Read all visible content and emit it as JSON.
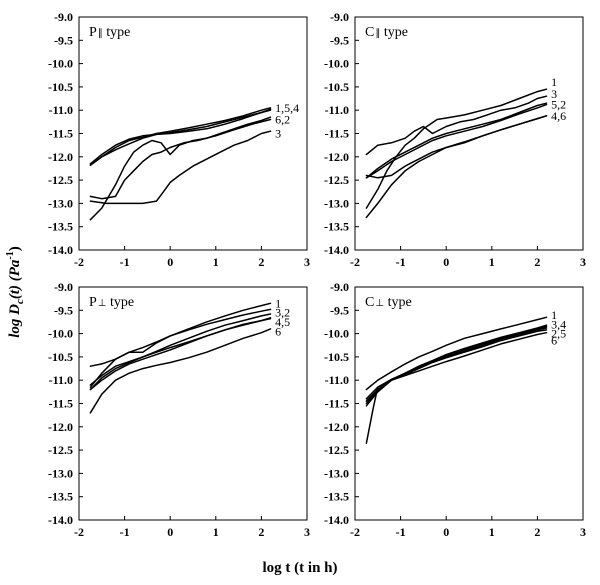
{
  "figure": {
    "ylabel": "log D",
    "ylabel_sub": "c",
    "ylabel_tail": "(t) (Pa",
    "ylabel_sup": "-1",
    "ylabel_end": ")",
    "xlabel": "log t (t in h)"
  },
  "chart_data": [
    {
      "type": "line",
      "title": "P",
      "title_symbol": "∥",
      "title_suffix": " type",
      "xlim": [
        -2,
        3
      ],
      "ylim": [
        -14.0,
        -9.0
      ],
      "xticks": [
        "-2",
        "-1",
        "0",
        "1",
        "2",
        "3"
      ],
      "yticks": [
        "-9.0",
        "-9.5",
        "-10.0",
        "-10.5",
        "-11.0",
        "-11.5",
        "-12.0",
        "-12.5",
        "-13.0",
        "-13.5",
        "-14.0"
      ],
      "curve_labels": [
        {
          "text": "1,5,4",
          "y": -10.95
        },
        {
          "text": "6,2",
          "y": -11.2
        },
        {
          "text": "3",
          "y": -11.5
        }
      ],
      "series": [
        {
          "x": [
            -1.75,
            -1.5,
            -1.2,
            -0.9,
            -0.6,
            -0.3,
            0.0,
            0.4,
            0.8,
            1.2,
            1.6,
            2.0,
            2.2
          ],
          "y": [
            -12.18,
            -12.0,
            -11.8,
            -11.65,
            -11.58,
            -11.5,
            -11.45,
            -11.38,
            -11.3,
            -11.22,
            -11.12,
            -11.0,
            -10.95
          ]
        },
        {
          "x": [
            -1.75,
            -1.5,
            -1.2,
            -0.9,
            -0.6,
            -0.3,
            0.0,
            0.4,
            0.8,
            1.2,
            1.6,
            2.0,
            2.2
          ],
          "y": [
            -12.15,
            -11.95,
            -11.75,
            -11.62,
            -11.55,
            -11.52,
            -11.5,
            -11.45,
            -11.4,
            -11.3,
            -11.18,
            -11.05,
            -10.98
          ]
        },
        {
          "x": [
            -1.75,
            -1.5,
            -1.2,
            -0.9,
            -0.6,
            -0.3,
            0.0,
            0.4,
            0.8,
            1.2,
            1.6,
            2.0,
            2.2
          ],
          "y": [
            -12.18,
            -12.0,
            -11.85,
            -11.72,
            -11.6,
            -11.52,
            -11.48,
            -11.42,
            -11.35,
            -11.25,
            -11.15,
            -11.05,
            -11.0
          ]
        },
        {
          "x": [
            -1.75,
            -1.5,
            -1.2,
            -1.0,
            -0.8,
            -0.6,
            -0.4,
            -0.2,
            0.0,
            0.3,
            0.6,
            1.0,
            1.4,
            1.8,
            2.2
          ],
          "y": [
            -12.85,
            -12.9,
            -12.85,
            -12.5,
            -12.3,
            -12.1,
            -11.95,
            -11.9,
            -11.8,
            -11.7,
            -11.65,
            -11.55,
            -11.42,
            -11.3,
            -11.2
          ]
        },
        {
          "x": [
            -1.75,
            -1.5,
            -1.2,
            -1.0,
            -0.8,
            -0.6,
            -0.4,
            -0.2,
            0.0,
            0.2,
            0.5,
            0.8,
            1.1,
            1.4,
            1.7,
            2.0,
            2.2
          ],
          "y": [
            -13.35,
            -13.1,
            -12.6,
            -12.2,
            -11.9,
            -11.75,
            -11.65,
            -11.7,
            -11.95,
            -11.75,
            -11.65,
            -11.6,
            -11.5,
            -11.4,
            -11.3,
            -11.22,
            -11.15
          ]
        },
        {
          "x": [
            -1.75,
            -1.4,
            -1.0,
            -0.6,
            -0.3,
            -0.15,
            0.0,
            0.2,
            0.5,
            0.8,
            1.1,
            1.4,
            1.7,
            2.0,
            2.2
          ],
          "y": [
            -12.95,
            -13.0,
            -13.0,
            -13.0,
            -12.95,
            -12.75,
            -12.55,
            -12.4,
            -12.2,
            -12.05,
            -11.9,
            -11.75,
            -11.65,
            -11.5,
            -11.45
          ]
        }
      ]
    },
    {
      "type": "line",
      "title": "C",
      "title_symbol": "∥",
      "title_suffix": " type",
      "xlim": [
        -2,
        3
      ],
      "ylim": [
        -14.0,
        -9.0
      ],
      "xticks": [
        "-2",
        "-1",
        "0",
        "1",
        "2",
        "3"
      ],
      "yticks": [
        "-9.0",
        "-9.5",
        "-10.0",
        "-10.5",
        "-11.0",
        "-11.5",
        "-12.0",
        "-12.5",
        "-13.0",
        "-13.5",
        "-14.0"
      ],
      "curve_labels": [
        {
          "text": "1",
          "y": -10.4
        },
        {
          "text": "3",
          "y": -10.65
        },
        {
          "text": "5,2",
          "y": -10.88
        },
        {
          "text": "4,6",
          "y": -11.12
        }
      ],
      "series": [
        {
          "x": [
            -1.75,
            -1.5,
            -1.3,
            -1.1,
            -0.9,
            -0.7,
            -0.5,
            -0.2,
            0.1,
            0.4,
            0.8,
            1.2,
            1.6,
            2.0,
            2.2
          ],
          "y": [
            -13.1,
            -12.7,
            -12.3,
            -12.0,
            -11.75,
            -11.6,
            -11.4,
            -11.2,
            -11.15,
            -11.1,
            -11.0,
            -10.9,
            -10.75,
            -10.6,
            -10.55
          ]
        },
        {
          "x": [
            -1.75,
            -1.5,
            -1.2,
            -0.9,
            -0.7,
            -0.5,
            -0.3,
            0.0,
            0.3,
            0.6,
            0.9,
            1.2,
            1.5,
            1.8,
            2.0,
            2.2
          ],
          "y": [
            -11.95,
            -11.75,
            -11.7,
            -11.6,
            -11.45,
            -11.35,
            -11.5,
            -11.35,
            -11.25,
            -11.2,
            -11.1,
            -11.0,
            -10.95,
            -10.85,
            -10.75,
            -10.7
          ]
        },
        {
          "x": [
            -1.75,
            -1.5,
            -1.2,
            -0.9,
            -0.6,
            -0.3,
            0.0,
            0.4,
            0.8,
            1.2,
            1.6,
            2.0,
            2.2
          ],
          "y": [
            -12.45,
            -12.25,
            -12.05,
            -11.9,
            -11.75,
            -11.6,
            -11.5,
            -11.4,
            -11.3,
            -11.2,
            -11.05,
            -10.9,
            -10.85
          ]
        },
        {
          "x": [
            -1.75,
            -1.5,
            -1.2,
            -0.9,
            -0.6,
            -0.3,
            0.0,
            0.4,
            0.8,
            1.2,
            1.6,
            2.0,
            2.2
          ],
          "y": [
            -12.45,
            -12.3,
            -12.1,
            -11.95,
            -11.8,
            -11.65,
            -11.55,
            -11.45,
            -11.35,
            -11.22,
            -11.08,
            -10.95,
            -10.88
          ]
        },
        {
          "x": [
            -1.75,
            -1.5,
            -1.2,
            -0.9,
            -0.6,
            -0.3,
            0.0,
            0.4,
            0.8,
            1.2,
            1.6,
            2.0,
            2.2
          ],
          "y": [
            -13.3,
            -13.0,
            -12.6,
            -12.3,
            -12.1,
            -11.95,
            -11.8,
            -11.68,
            -11.55,
            -11.42,
            -11.3,
            -11.18,
            -11.12
          ]
        },
        {
          "x": [
            -1.75,
            -1.5,
            -1.2,
            -0.9,
            -0.6,
            -0.3,
            0.0,
            0.4,
            0.8,
            1.2,
            1.6,
            2.0,
            2.2
          ],
          "y": [
            -12.4,
            -12.45,
            -12.4,
            -12.2,
            -12.05,
            -11.9,
            -11.8,
            -11.7,
            -11.55,
            -11.42,
            -11.3,
            -11.18,
            -11.12
          ]
        }
      ]
    },
    {
      "type": "line",
      "title": "P",
      "title_symbol": "⊥",
      "title_suffix": " type",
      "xlim": [
        -2,
        3
      ],
      "ylim": [
        -14.0,
        -9.0
      ],
      "xticks": [
        "-2",
        "-1",
        "0",
        "1",
        "2",
        "3"
      ],
      "yticks": [
        "-9.0",
        "-9.5",
        "-10.0",
        "-10.5",
        "-11.0",
        "-11.5",
        "-12.0",
        "-12.5",
        "-13.0",
        "-13.5",
        "-14.0"
      ],
      "curve_labels": [
        {
          "text": "1",
          "y": -9.35
        },
        {
          "text": "3,2",
          "y": -9.55
        },
        {
          "text": "4,5",
          "y": -9.75
        },
        {
          "text": "6",
          "y": -9.95
        }
      ],
      "series": [
        {
          "x": [
            -1.75,
            -1.5,
            -1.2,
            -0.9,
            -0.6,
            -0.3,
            0.0,
            0.4,
            0.8,
            1.2,
            1.6,
            2.0,
            2.2
          ],
          "y": [
            -11.15,
            -10.85,
            -10.55,
            -10.4,
            -10.4,
            -10.2,
            -10.05,
            -9.9,
            -9.75,
            -9.62,
            -9.5,
            -9.4,
            -9.35
          ]
        },
        {
          "x": [
            -1.75,
            -1.5,
            -1.2,
            -0.9,
            -0.6,
            -0.3,
            0.0,
            0.4,
            0.8,
            1.2,
            1.6,
            2.0,
            2.2
          ],
          "y": [
            -10.7,
            -10.65,
            -10.55,
            -10.4,
            -10.3,
            -10.18,
            -10.05,
            -9.92,
            -9.8,
            -9.7,
            -9.6,
            -9.52,
            -9.48
          ]
        },
        {
          "x": [
            -1.75,
            -1.5,
            -1.2,
            -0.9,
            -0.6,
            -0.3,
            0.0,
            0.4,
            0.8,
            1.2,
            1.6,
            2.0,
            2.2
          ],
          "y": [
            -11.2,
            -10.95,
            -10.75,
            -10.62,
            -10.5,
            -10.38,
            -10.25,
            -10.1,
            -9.95,
            -9.82,
            -9.72,
            -9.62,
            -9.58
          ]
        },
        {
          "x": [
            -1.75,
            -1.5,
            -1.2,
            -0.9,
            -0.6,
            -0.3,
            0.0,
            0.4,
            0.8,
            1.2,
            1.6,
            2.0,
            2.2
          ],
          "y": [
            -11.2,
            -11.0,
            -10.8,
            -10.65,
            -10.55,
            -10.45,
            -10.35,
            -10.2,
            -10.05,
            -9.92,
            -9.8,
            -9.72,
            -9.68
          ]
        },
        {
          "x": [
            -1.75,
            -1.5,
            -1.2,
            -0.9,
            -0.6,
            -0.3,
            0.0,
            0.4,
            0.8,
            1.2,
            1.6,
            2.0,
            2.2
          ],
          "y": [
            -11.1,
            -10.9,
            -10.7,
            -10.6,
            -10.5,
            -10.4,
            -10.3,
            -10.18,
            -10.05,
            -9.92,
            -9.82,
            -9.72,
            -9.66
          ]
        },
        {
          "x": [
            -1.75,
            -1.5,
            -1.2,
            -0.9,
            -0.6,
            -0.3,
            0.0,
            0.4,
            0.8,
            1.2,
            1.6,
            2.0,
            2.2
          ],
          "y": [
            -11.7,
            -11.3,
            -11.0,
            -10.85,
            -10.75,
            -10.68,
            -10.62,
            -10.52,
            -10.4,
            -10.25,
            -10.1,
            -9.98,
            -9.9
          ]
        }
      ]
    },
    {
      "type": "line",
      "title": "C",
      "title_symbol": "⊥",
      "title_suffix": " type",
      "xlim": [
        -2,
        3
      ],
      "ylim": [
        -14.0,
        -9.0
      ],
      "xticks": [
        "-2",
        "-1",
        "0",
        "1",
        "2",
        "3"
      ],
      "yticks": [
        "-9.0",
        "-9.5",
        "-10.0",
        "-10.5",
        "-11.0",
        "-11.5",
        "-12.0",
        "-12.5",
        "-13.0",
        "-13.5",
        "-14.0"
      ],
      "curve_labels": [
        {
          "text": "1",
          "y": -9.6
        },
        {
          "text": "3,4",
          "y": -9.8
        },
        {
          "text": "2,5",
          "y": -10.0
        },
        {
          "text": "6",
          "y": -10.15
        }
      ],
      "series": [
        {
          "x": [
            -1.75,
            -1.5,
            -1.2,
            -0.9,
            -0.6,
            -0.3,
            0.0,
            0.4,
            0.8,
            1.2,
            1.6,
            2.0,
            2.2
          ],
          "y": [
            -11.2,
            -11.0,
            -10.82,
            -10.65,
            -10.5,
            -10.38,
            -10.25,
            -10.1,
            -10.0,
            -9.9,
            -9.8,
            -9.7,
            -9.65
          ]
        },
        {
          "x": [
            -1.75,
            -1.5,
            -1.2,
            -0.9,
            -0.6,
            -0.3,
            0.0,
            0.4,
            0.8,
            1.2,
            1.6,
            2.0,
            2.2
          ],
          "y": [
            -11.55,
            -11.25,
            -11.0,
            -10.85,
            -10.7,
            -10.58,
            -10.45,
            -10.32,
            -10.2,
            -10.08,
            -9.98,
            -9.88,
            -9.82
          ]
        },
        {
          "x": [
            -1.75,
            -1.5,
            -1.2,
            -0.9,
            -0.6,
            -0.3,
            0.0,
            0.4,
            0.8,
            1.2,
            1.6,
            2.0,
            2.2
          ],
          "y": [
            -11.5,
            -11.22,
            -11.0,
            -10.85,
            -10.72,
            -10.6,
            -10.48,
            -10.35,
            -10.22,
            -10.1,
            -10.0,
            -9.9,
            -9.85
          ]
        },
        {
          "x": [
            -1.75,
            -1.5,
            -1.2,
            -0.9,
            -0.6,
            -0.3,
            0.0,
            0.4,
            0.8,
            1.2,
            1.6,
            2.0,
            2.2
          ],
          "y": [
            -11.45,
            -11.2,
            -11.0,
            -10.88,
            -10.75,
            -10.62,
            -10.52,
            -10.4,
            -10.28,
            -10.15,
            -10.05,
            -9.95,
            -9.92
          ]
        },
        {
          "x": [
            -1.75,
            -1.5,
            -1.2,
            -0.9,
            -0.6,
            -0.3,
            0.0,
            0.4,
            0.8,
            1.2,
            1.6,
            2.0,
            2.2
          ],
          "y": [
            -11.4,
            -11.15,
            -10.98,
            -10.85,
            -10.72,
            -10.6,
            -10.5,
            -10.38,
            -10.25,
            -10.12,
            -10.02,
            -9.92,
            -9.88
          ]
        },
        {
          "x": [
            -1.75,
            -1.6,
            -1.5,
            -1.4,
            -1.2,
            -0.9,
            -0.6,
            -0.3,
            0.0,
            0.4,
            0.8,
            1.2,
            1.6,
            2.0,
            2.2
          ],
          "y": [
            -12.35,
            -11.6,
            -11.15,
            -11.1,
            -11.0,
            -10.9,
            -10.8,
            -10.7,
            -10.6,
            -10.48,
            -10.35,
            -10.22,
            -10.12,
            -10.02,
            -9.98
          ]
        }
      ]
    }
  ]
}
